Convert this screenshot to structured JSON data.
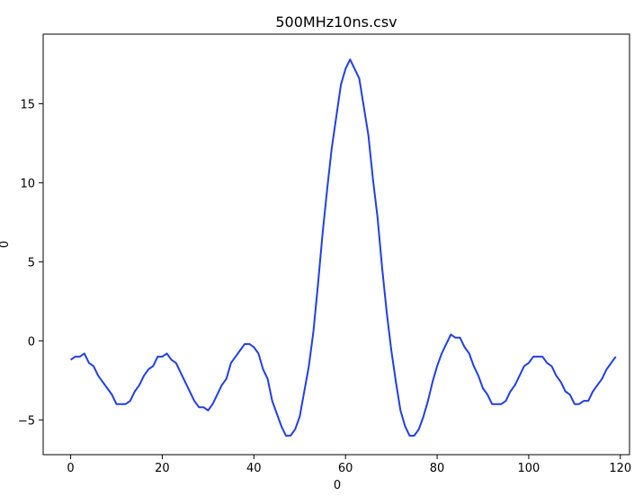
{
  "chart_data": {
    "type": "line",
    "title": "500MHz10ns.csv",
    "xlabel": "0",
    "ylabel": "0",
    "xlim": [
      -6,
      122
    ],
    "ylim": [
      -7.2,
      19.4
    ],
    "xticks": [
      0,
      20,
      40,
      60,
      80,
      100,
      120
    ],
    "yticks": [
      -5,
      0,
      5,
      10,
      15
    ],
    "grid": false,
    "line_color": "#1f3fe6",
    "series": [
      {
        "x": [
          0,
          1,
          2,
          3,
          4,
          5,
          6,
          7,
          8,
          9,
          10,
          11,
          12,
          13,
          14,
          15,
          16,
          17,
          18,
          19,
          20,
          21,
          22,
          23,
          24,
          25,
          26,
          27,
          28,
          29,
          30,
          31,
          32,
          33,
          34,
          35,
          36,
          37,
          38,
          39,
          40,
          41,
          42,
          43,
          44,
          45,
          46,
          47,
          48,
          49,
          50,
          51,
          52,
          53,
          54,
          55,
          56,
          57,
          58,
          59,
          60,
          61,
          62,
          63,
          64,
          65,
          66,
          67,
          68,
          69,
          70,
          71,
          72,
          73,
          74,
          75,
          76,
          77,
          78,
          79,
          80,
          81,
          82,
          83,
          84,
          85,
          86,
          87,
          88,
          89,
          90,
          91,
          92,
          93,
          94,
          95,
          96,
          97,
          98,
          99,
          100,
          101,
          102,
          103,
          104,
          105,
          106,
          107,
          108,
          109,
          110,
          111,
          112,
          113,
          114,
          115,
          116,
          117,
          118,
          119
        ],
        "values": [
          -1.2,
          -1.0,
          -1.0,
          -0.8,
          -1.4,
          -1.6,
          -2.2,
          -2.6,
          -3.0,
          -3.4,
          -4.0,
          -4.0,
          -4.0,
          -3.8,
          -3.2,
          -2.8,
          -2.2,
          -1.8,
          -1.6,
          -1.0,
          -1.0,
          -0.8,
          -1.2,
          -1.4,
          -2.0,
          -2.6,
          -3.2,
          -3.8,
          -4.2,
          -4.2,
          -4.4,
          -4.0,
          -3.4,
          -2.8,
          -2.4,
          -1.4,
          -1.0,
          -0.6,
          -0.2,
          -0.2,
          -0.4,
          -0.8,
          -1.8,
          -2.4,
          -3.8,
          -4.6,
          -5.4,
          -6.0,
          -6.0,
          -5.6,
          -4.8,
          -3.2,
          -1.6,
          0.6,
          3.6,
          6.8,
          9.6,
          12.2,
          14.2,
          16.2,
          17.2,
          17.8,
          17.2,
          16.6,
          14.8,
          13.0,
          10.2,
          7.8,
          4.6,
          1.8,
          -0.6,
          -2.6,
          -4.4,
          -5.4,
          -6.0,
          -6.0,
          -5.6,
          -4.8,
          -3.8,
          -2.6,
          -1.6,
          -0.8,
          -0.2,
          0.4,
          0.2,
          0.2,
          -0.4,
          -0.8,
          -1.6,
          -2.2,
          -3.0,
          -3.4,
          -4.0,
          -4.0,
          -4.0,
          -3.8,
          -3.2,
          -2.8,
          -2.2,
          -1.6,
          -1.4,
          -1.0,
          -1.0,
          -1.0,
          -1.4,
          -1.6,
          -2.2,
          -2.6,
          -3.2,
          -3.4,
          -4.0,
          -4.0,
          -3.8,
          -3.8,
          -3.2,
          -2.8,
          -2.4,
          -1.8,
          -1.4,
          -1.0
        ]
      }
    ]
  }
}
